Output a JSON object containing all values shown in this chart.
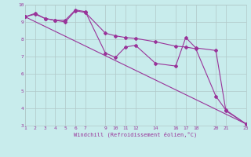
{
  "xlabel": "Windchill (Refroidissement éolien,°C)",
  "bg_color": "#c8ecec",
  "grid_color": "#b0c8c8",
  "line_color": "#993399",
  "x_ticks": [
    1,
    2,
    3,
    4,
    5,
    6,
    7,
    9,
    10,
    11,
    12,
    14,
    16,
    17,
    18,
    20,
    21,
    23
  ],
  "ylim": [
    3,
    10
  ],
  "xlim": [
    1,
    23
  ],
  "line1_x": [
    1,
    2,
    3,
    4,
    5,
    6,
    7,
    9,
    10,
    11,
    12,
    14,
    16,
    17,
    18,
    20,
    21,
    23
  ],
  "line1_y": [
    9.3,
    9.5,
    9.2,
    9.1,
    9.1,
    9.7,
    9.6,
    7.2,
    6.95,
    7.55,
    7.65,
    6.6,
    6.45,
    8.1,
    7.5,
    7.35,
    3.85,
    3.1
  ],
  "line2_x": [
    1,
    2,
    3,
    4,
    5,
    6,
    7,
    9,
    10,
    11,
    12,
    14,
    16,
    17,
    18,
    20,
    21,
    23
  ],
  "line2_y": [
    9.3,
    9.45,
    9.2,
    9.1,
    9.0,
    9.65,
    9.55,
    8.35,
    8.2,
    8.1,
    8.05,
    7.85,
    7.6,
    7.55,
    7.45,
    4.7,
    3.9,
    3.1
  ],
  "line3_x": [
    1,
    23
  ],
  "line3_y": [
    9.3,
    3.1
  ]
}
